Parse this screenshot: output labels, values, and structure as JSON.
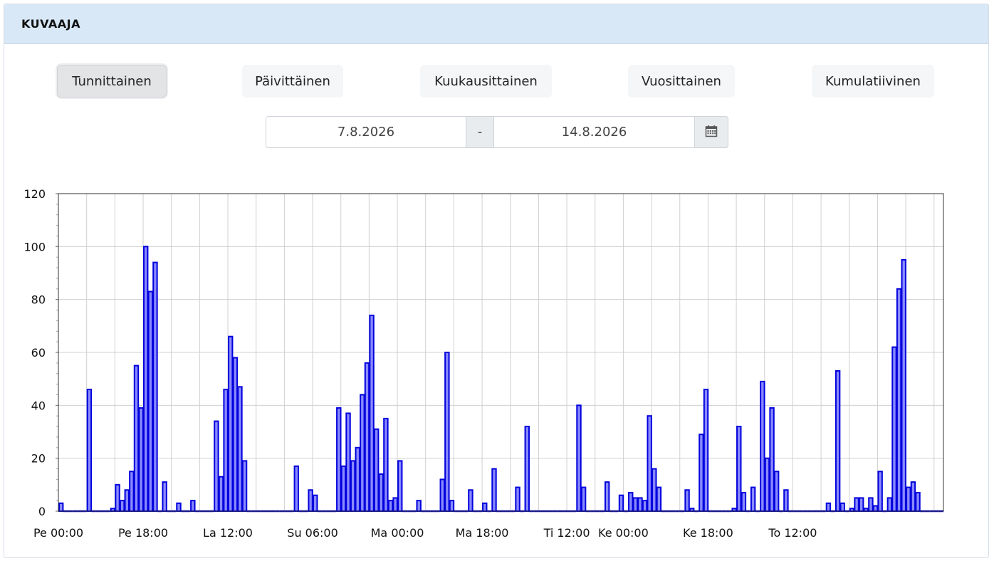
{
  "panel": {
    "title": "KUVAAJA"
  },
  "period_buttons": [
    {
      "label": "Tunnittainen",
      "active": true
    },
    {
      "label": "Päivittäinen",
      "active": false
    },
    {
      "label": "Kuukausittainen",
      "active": false
    },
    {
      "label": "Vuosittainen",
      "active": false
    },
    {
      "label": "Kumulatiivinen",
      "active": false
    }
  ],
  "date_range": {
    "start": "7.8.2026",
    "separator": "-",
    "end": "14.8.2026",
    "calendar_icon": "calendar-icon"
  },
  "colors": {
    "bar_fill": "#8a8aff",
    "bar_stroke": "#0000dd",
    "header_bg": "#d9e8f7"
  },
  "chart_data": {
    "type": "bar",
    "ylim": [
      0,
      120
    ],
    "y_ticks": [
      0,
      20,
      40,
      60,
      80,
      100,
      120
    ],
    "grid": true,
    "x_tick_labels": [
      {
        "hour": 0,
        "label": "Pe 00:00"
      },
      {
        "hour": 18,
        "label": "Pe 18:00"
      },
      {
        "hour": 36,
        "label": "La 12:00"
      },
      {
        "hour": 54,
        "label": "Su 06:00"
      },
      {
        "hour": 72,
        "label": "Ma 00:00"
      },
      {
        "hour": 90,
        "label": "Ma 18:00"
      },
      {
        "hour": 108,
        "label": "Ti 12:00"
      },
      {
        "hour": 120,
        "label": "Ke 00:00"
      },
      {
        "hour": 138,
        "label": "Ke 18:00"
      },
      {
        "hour": 156,
        "label": "To 12:00"
      }
    ],
    "values": [
      3,
      0,
      0,
      0,
      0,
      0,
      46,
      0,
      0,
      0,
      0,
      1,
      10,
      4,
      8,
      15,
      55,
      39,
      100,
      83,
      94,
      0,
      11,
      0,
      0,
      3,
      0,
      0,
      4,
      0,
      0,
      0,
      0,
      34,
      13,
      46,
      66,
      58,
      47,
      19,
      0,
      0,
      0,
      0,
      0,
      0,
      0,
      0,
      0,
      0,
      17,
      0,
      0,
      8,
      6,
      0,
      0,
      0,
      0,
      39,
      17,
      37,
      19,
      24,
      44,
      56,
      74,
      31,
      14,
      35,
      4,
      5,
      19,
      0,
      0,
      0,
      4,
      0,
      0,
      0,
      0,
      12,
      60,
      4,
      0,
      0,
      0,
      8,
      0,
      0,
      3,
      0,
      16,
      0,
      0,
      0,
      0,
      9,
      0,
      32,
      0,
      0,
      0,
      0,
      0,
      0,
      0,
      0,
      0,
      0,
      40,
      9,
      0,
      0,
      0,
      0,
      11,
      0,
      0,
      6,
      0,
      7,
      5,
      5,
      4,
      36,
      16,
      9,
      0,
      0,
      0,
      0,
      0,
      8,
      1,
      0,
      29,
      46,
      0,
      0,
      0,
      0,
      0,
      1,
      32,
      7,
      0,
      9,
      0,
      49,
      20,
      39,
      15,
      0,
      8,
      0,
      0,
      0,
      0,
      0,
      0,
      0,
      0,
      3,
      0,
      53,
      3,
      0,
      1,
      5,
      5,
      1,
      5,
      2,
      15,
      0,
      5,
      62,
      84,
      95,
      9,
      11,
      7,
      0,
      0,
      0,
      0,
      0
    ]
  }
}
